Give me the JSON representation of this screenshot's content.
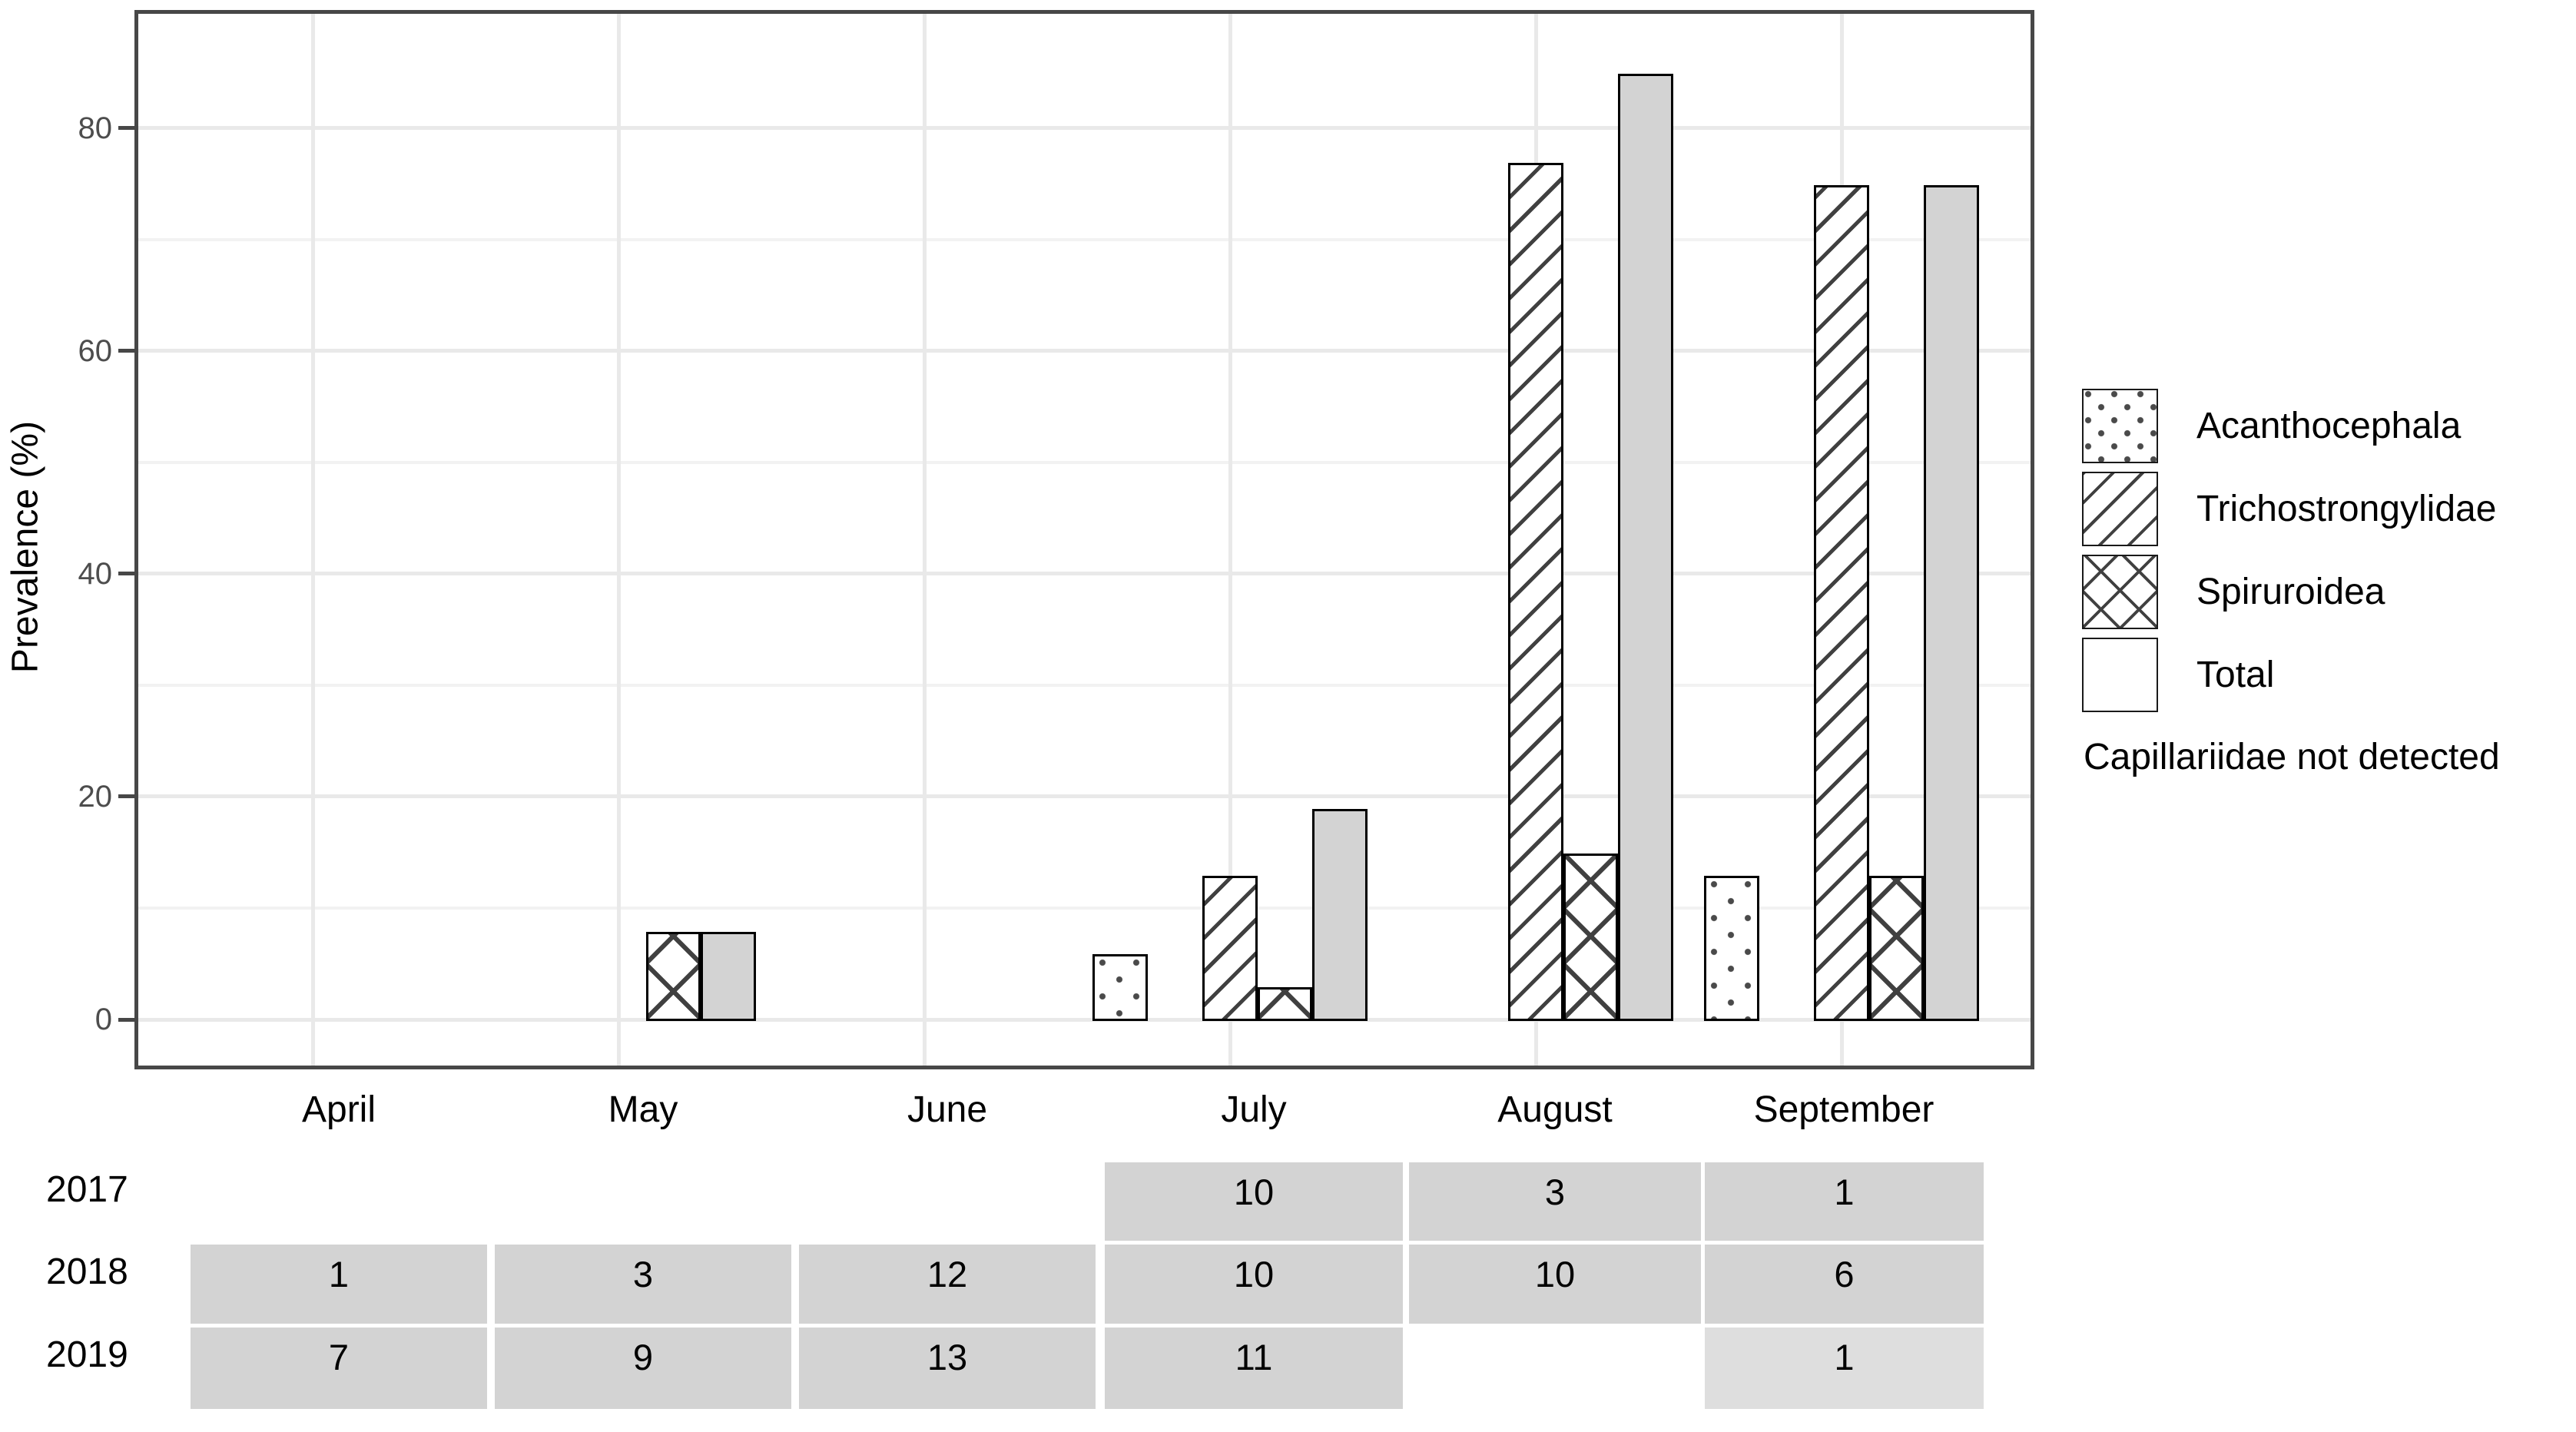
{
  "chart_data": {
    "type": "bar",
    "title": "",
    "xlabel": "",
    "ylabel": "Prevalence (%)",
    "ylim": [
      0,
      90
    ],
    "yticks": [
      "0",
      "20",
      "40",
      "60",
      "80"
    ],
    "ytick_values": [
      0,
      20,
      40,
      60,
      80
    ],
    "yminor_values": [
      10,
      30,
      50,
      70
    ],
    "grid": "on",
    "legend_position": "right",
    "categories": [
      "April",
      "May",
      "June",
      "July",
      "August",
      "September"
    ],
    "series": [
      {
        "name": "Acanthocephala",
        "pattern": "dots",
        "values": [
          null,
          null,
          null,
          6,
          null,
          13
        ]
      },
      {
        "name": "Capillariidae",
        "pattern": "none",
        "values": [
          null,
          null,
          null,
          null,
          null,
          null
        ]
      },
      {
        "name": "Trichostrongylidae",
        "pattern": "diag",
        "values": [
          null,
          null,
          null,
          13,
          77,
          75
        ]
      },
      {
        "name": "Spiruroidea",
        "pattern": "cross",
        "values": [
          null,
          8,
          null,
          3,
          15,
          13
        ]
      },
      {
        "name": "Total",
        "pattern": "solid",
        "values": [
          null,
          8,
          null,
          19,
          85,
          75
        ]
      }
    ]
  },
  "legend": {
    "items": [
      {
        "label": "Acanthocephala",
        "pattern": "dots"
      },
      {
        "label": "Trichostrongylidae",
        "pattern": "diag"
      },
      {
        "label": "Spiruroidea",
        "pattern": "cross"
      },
      {
        "label": "Total",
        "pattern": "solid"
      }
    ],
    "note": "Capillariidae not detected"
  },
  "table": {
    "rows": [
      {
        "year": "2017",
        "cells": [
          null,
          null,
          null,
          "10",
          "3",
          "1"
        ]
      },
      {
        "year": "2018",
        "cells": [
          "1",
          "3",
          "12",
          "10",
          "10",
          "6"
        ]
      },
      {
        "year": "2019",
        "cells": [
          "7",
          "9",
          "13",
          "11",
          null,
          "1"
        ]
      }
    ],
    "light_cells": [
      {
        "row": 2,
        "col": 5
      }
    ]
  },
  "colors": {
    "bar_fill": "#d3d3d3",
    "pattern_line": "#404040",
    "panel_border": "#474747",
    "grid_major": "#e9e9e9",
    "grid_minor": "#f2f2f2",
    "tick_label": "#4d4d4d",
    "text": "#000000",
    "table_cell": "#d3d3d3",
    "table_cell_light": "#dedede"
  }
}
